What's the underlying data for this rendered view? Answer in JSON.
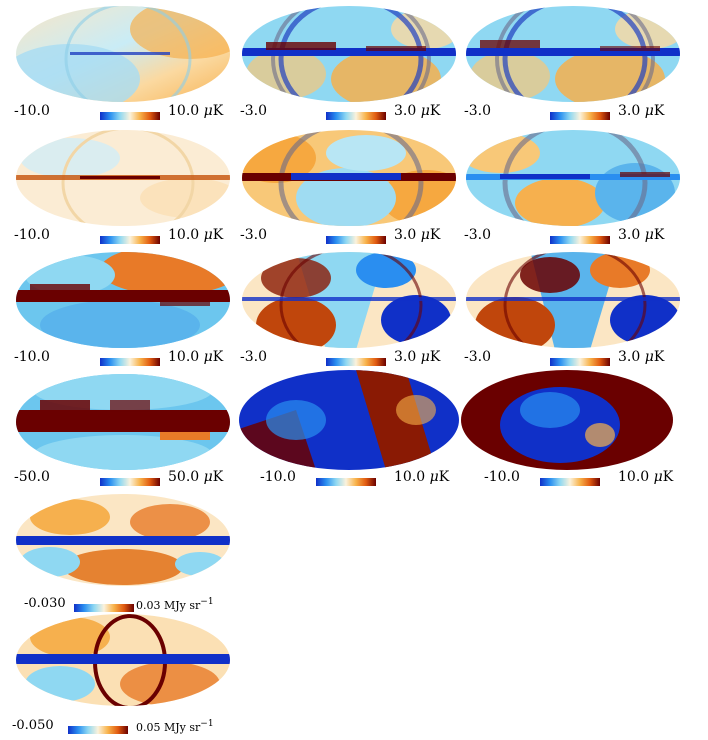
{
  "figure": {
    "panels": [
      {
        "id": "r1c1",
        "min": "-10.0",
        "max": "10.0",
        "unit": "K",
        "mu": "μ"
      },
      {
        "id": "r1c2",
        "min": "-3.0",
        "max": "3.0",
        "unit": "K",
        "mu": "μ"
      },
      {
        "id": "r1c3",
        "min": "-3.0",
        "max": "3.0",
        "unit": "K",
        "mu": "μ"
      },
      {
        "id": "r2c1",
        "min": "-10.0",
        "max": "10.0",
        "unit": "K",
        "mu": "μ"
      },
      {
        "id": "r2c2",
        "min": "-3.0",
        "max": "3.0",
        "unit": "K",
        "mu": "μ"
      },
      {
        "id": "r2c3",
        "min": "-3.0",
        "max": "3.0",
        "unit": "K",
        "mu": "μ"
      },
      {
        "id": "r3c1",
        "min": "-10.0",
        "max": "10.0",
        "unit": "K",
        "mu": "μ"
      },
      {
        "id": "r3c2",
        "min": "-3.0",
        "max": "3.0",
        "unit": "K",
        "mu": "μ"
      },
      {
        "id": "r3c3",
        "min": "-3.0",
        "max": "3.0",
        "unit": "K",
        "mu": "μ"
      },
      {
        "id": "r4c1",
        "min": "-50.0",
        "max": "50.0",
        "unit": "K",
        "mu": "μ"
      },
      {
        "id": "r4c2",
        "min": "-10.0",
        "max": "10.0",
        "unit": "K",
        "mu": "μ"
      },
      {
        "id": "r4c3",
        "min": "-10.0",
        "max": "10.0",
        "unit": "K",
        "mu": "μ"
      },
      {
        "id": "r5c1",
        "min": "-0.030",
        "max": "0.03",
        "unit": "MJy sr",
        "exp": "−1"
      },
      {
        "id": "r6c1",
        "min": "-0.050",
        "max": "0.05",
        "unit": "MJy sr",
        "exp": "−1"
      }
    ],
    "colormap": [
      "#1030c8",
      "#2a8ef0",
      "#8fd8f2",
      "#fbf2dc",
      "#f8b24a",
      "#e05a10",
      "#6a0000"
    ]
  }
}
